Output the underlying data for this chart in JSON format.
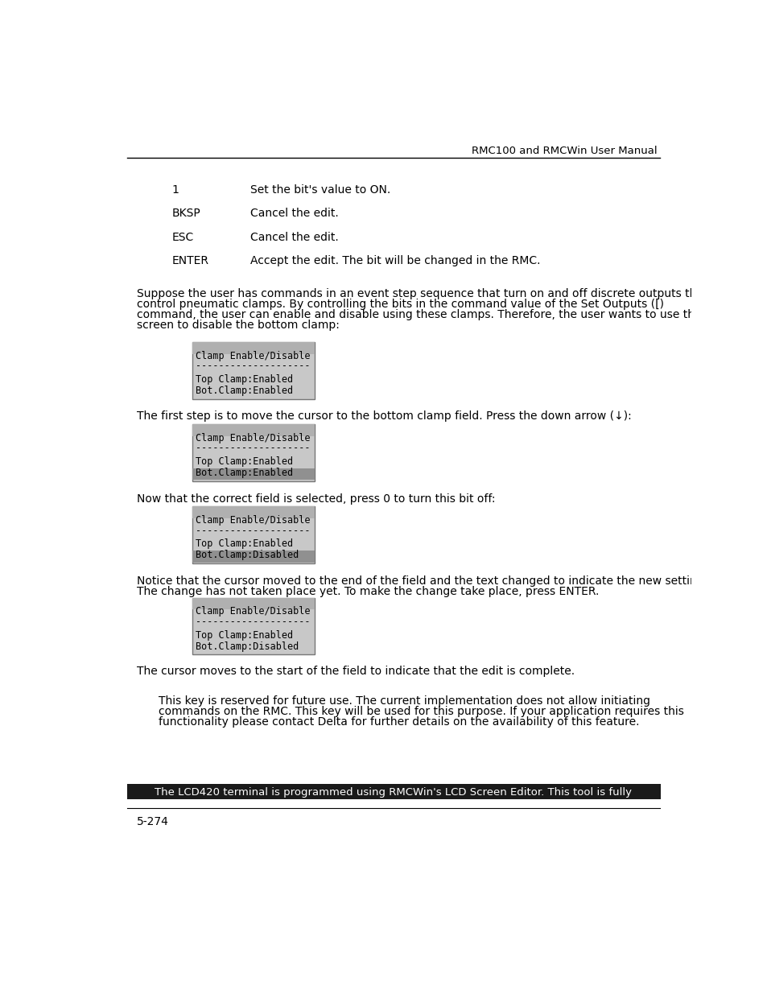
{
  "header_text": "RMC100 and RMCWin User Manual",
  "table_entries": [
    {
      "key": "1",
      "value": "Set the bit's value to ON."
    },
    {
      "key": "BKSP",
      "value": "Cancel the edit."
    },
    {
      "key": "ESC",
      "value": "Cancel the edit."
    },
    {
      "key": "ENTER",
      "value": "Accept the edit. The bit will be changed in the RMC."
    }
  ],
  "paragraph1_lines": [
    "Suppose the user has commands in an event step sequence that turn on and off discrete outputs that",
    "control pneumatic clamps. By controlling the bits in the command value of the Set Outputs ([)",
    "command, the user can enable and disable using these clamps. Therefore, the user wants to use this",
    "screen to disable the bottom clamp:"
  ],
  "lcd_boxes": [
    {
      "line1": "Clamp Enable/Disable",
      "line2": "--------------------",
      "line3": "Top Clamp:Enabled",
      "line4": "Bot.Clamp:Enabled",
      "highlight_line": null
    },
    {
      "line1": "Clamp Enable/Disable",
      "line2": "--------------------",
      "line3": "Top Clamp:Enabled",
      "line4": "Bot.Clamp:Enabled",
      "highlight_line": 4
    },
    {
      "line1": "Clamp Enable/Disable",
      "line2": "--------------------",
      "line3": "Top Clamp:Enabled",
      "line4": "Bot.Clamp:Disabled",
      "highlight_line": 4
    },
    {
      "line1": "Clamp Enable/Disable",
      "line2": "--------------------",
      "line3": "Top Clamp:Enabled",
      "line4": "Bot.Clamp:Disabled",
      "highlight_line": null
    }
  ],
  "captions_before_box": [
    "",
    "The first step is to move the cursor to the bottom clamp field. Press the down arrow (↓):",
    "Now that the correct field is selected, press 0 to turn this bit off:",
    "Notice that the cursor moved to the end of the field and the text changed to indicate the new setting.\nThe change has not taken place yet. To make the change take place, press ENTER."
  ],
  "caption_after_last_box": "The cursor moves to the start of the field to indicate that the edit is complete.",
  "note_text_lines": [
    "This key is reserved for future use. The current implementation does not allow initiating",
    "commands on the RMC. This key will be used for this purpose. If your application requires this",
    "functionality please contact Delta for further details on the availability of this feature."
  ],
  "footer_text": "The LCD420 terminal is programmed using RMCWin's LCD Screen Editor. This tool is fully",
  "page_number": "5-274",
  "bg_color": "#ffffff",
  "text_color": "#000000",
  "lcd_bg": "#c8c8c8",
  "lcd_highlight_top": "#b0b0b0",
  "lcd_highlight_bot": "#909090"
}
